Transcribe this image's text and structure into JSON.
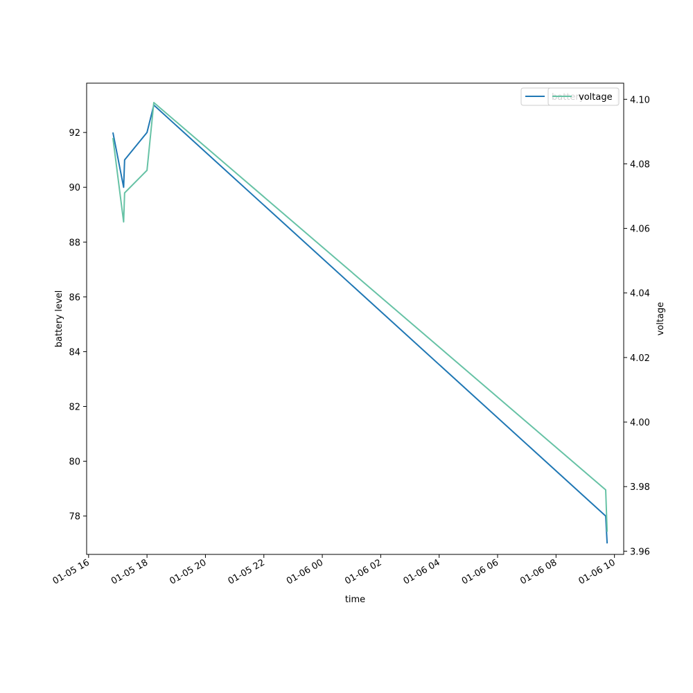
{
  "chart_data": {
    "type": "line",
    "xlabel": "time",
    "ylabel_left": "battery level",
    "ylabel_right": "voltage",
    "x_ticks": [
      {
        "t": "2025-01-05T16:00",
        "label": "01-05 16"
      },
      {
        "t": "2025-01-05T18:00",
        "label": "01-05 18"
      },
      {
        "t": "2025-01-05T20:00",
        "label": "01-05 20"
      },
      {
        "t": "2025-01-05T22:00",
        "label": "01-05 22"
      },
      {
        "t": "2025-01-06T00:00",
        "label": "01-06 00"
      },
      {
        "t": "2025-01-06T02:00",
        "label": "01-06 02"
      },
      {
        "t": "2025-01-06T04:00",
        "label": "01-06 04"
      },
      {
        "t": "2025-01-06T06:00",
        "label": "01-06 06"
      },
      {
        "t": "2025-01-06T08:00",
        "label": "01-06 08"
      },
      {
        "t": "2025-01-06T10:00",
        "label": "01-06 10"
      }
    ],
    "xlim": [
      "2025-01-05T15:56",
      "2025-01-06T10:19"
    ],
    "left_axis": {
      "ylim": [
        76.6,
        93.8
      ],
      "ticks": [
        78,
        80,
        82,
        84,
        86,
        88,
        90,
        92
      ]
    },
    "right_axis": {
      "ylim": [
        3.959,
        4.105
      ],
      "ticks": [
        3.96,
        3.98,
        4.0,
        4.02,
        4.04,
        4.06,
        4.08,
        4.1
      ],
      "tick_labels": [
        "3.96",
        "3.98",
        "4.00",
        "4.02",
        "4.04",
        "4.06",
        "4.08",
        "4.10"
      ]
    },
    "series": [
      {
        "name": "battery",
        "axis": "left",
        "color": "#1f77b4",
        "points": [
          {
            "x": "2025-01-05T16:50",
            "y": 92
          },
          {
            "x": "2025-01-05T17:12",
            "y": 90
          },
          {
            "x": "2025-01-05T17:14",
            "y": 91
          },
          {
            "x": "2025-01-05T18:00",
            "y": 92
          },
          {
            "x": "2025-01-05T18:14",
            "y": 93
          },
          {
            "x": "2025-01-06T09:42",
            "y": 78
          },
          {
            "x": "2025-01-06T09:45",
            "y": 77
          }
        ]
      },
      {
        "name": "voltage",
        "axis": "right",
        "color": "#66c2a5",
        "points": [
          {
            "x": "2025-01-05T16:50",
            "y": 4.088
          },
          {
            "x": "2025-01-05T17:12",
            "y": 4.062
          },
          {
            "x": "2025-01-05T17:14",
            "y": 4.071
          },
          {
            "x": "2025-01-05T18:00",
            "y": 4.078
          },
          {
            "x": "2025-01-05T18:14",
            "y": 4.099
          },
          {
            "x": "2025-01-06T09:42",
            "y": 3.979
          },
          {
            "x": "2025-01-06T09:45",
            "y": 3.966
          }
        ]
      }
    ],
    "legends": [
      {
        "label": "battery",
        "color": "#1f77b4",
        "position": "top-right"
      },
      {
        "label": "voltage",
        "color": "#66c2a5",
        "position": "top-right"
      }
    ]
  }
}
